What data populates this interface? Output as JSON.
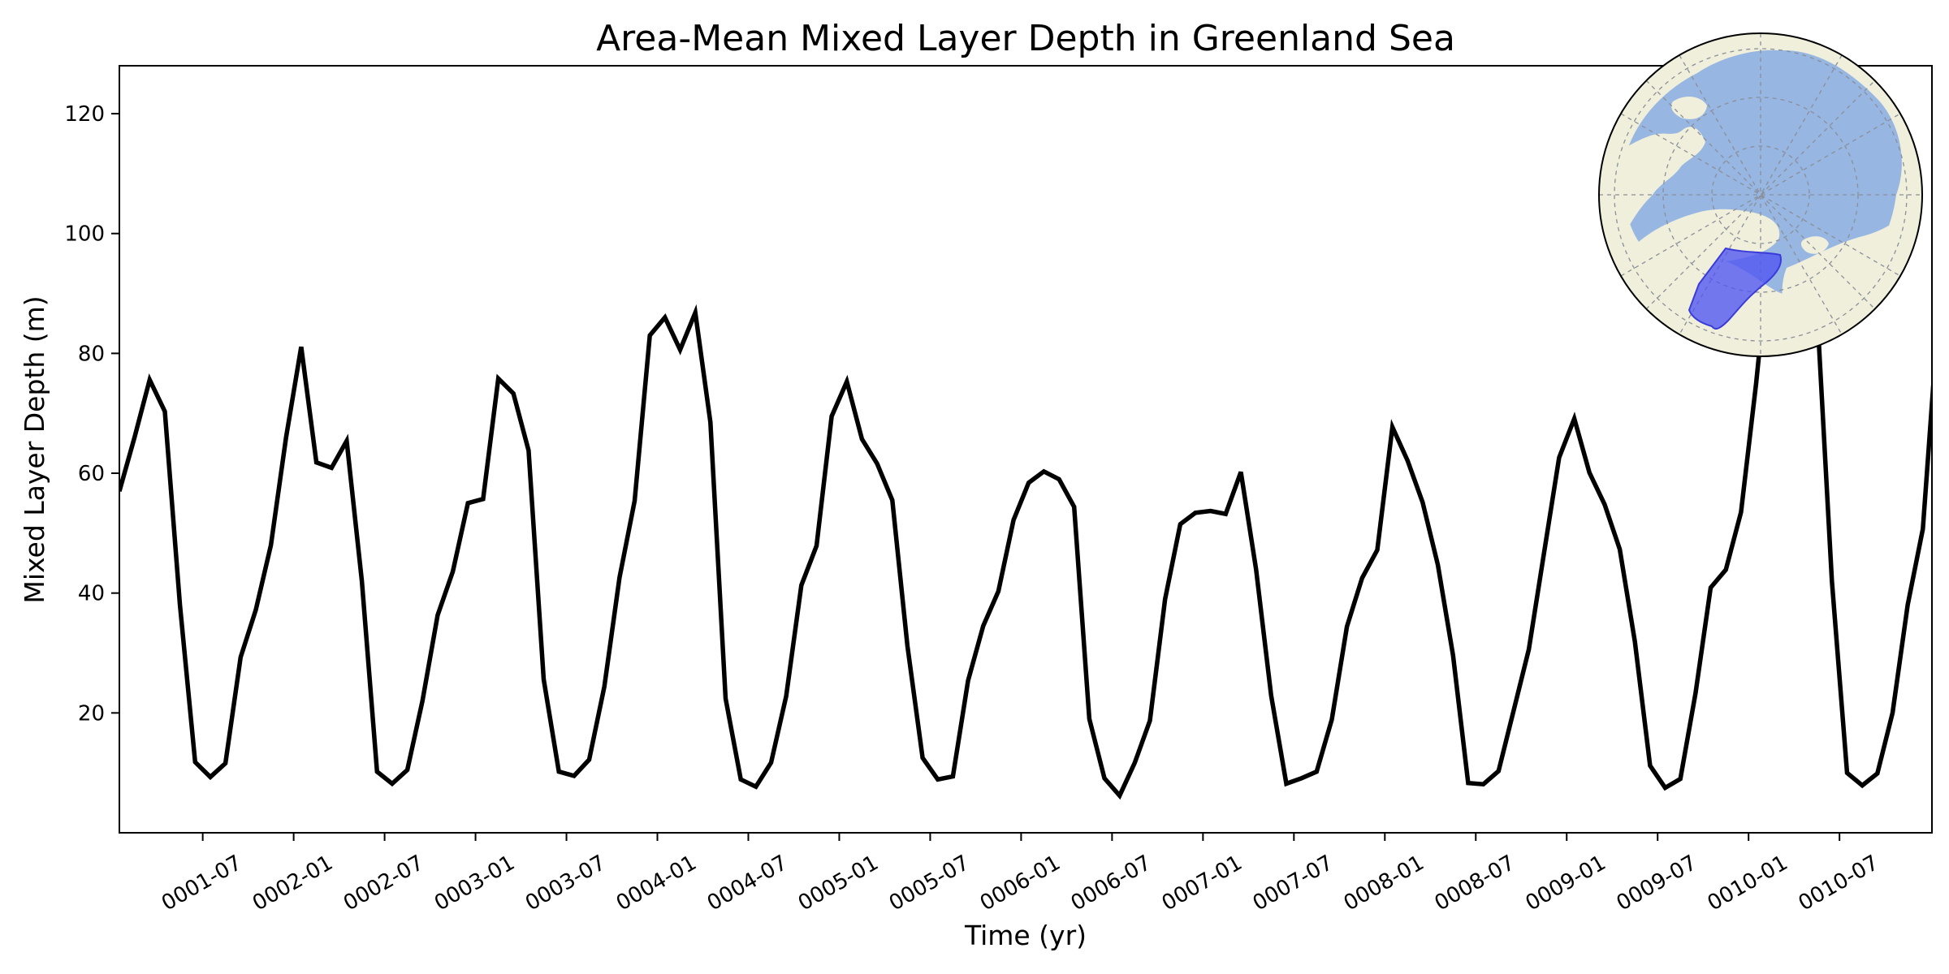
{
  "chart_data": {
    "type": "line",
    "title": "Area-Mean Mixed Layer Depth in Greenland Sea",
    "xlabel": "Time (yr)",
    "ylabel": "Mixed Layer Depth (m)",
    "ylim": [
      0,
      128
    ],
    "xlim": [
      0,
      119.6
    ],
    "yticks": [
      20,
      40,
      60,
      80,
      100,
      120
    ],
    "xticks": [
      {
        "month_index": 5.5,
        "label": "0001-07"
      },
      {
        "month_index": 11.5,
        "label": "0002-01"
      },
      {
        "month_index": 17.5,
        "label": "0002-07"
      },
      {
        "month_index": 23.5,
        "label": "0003-01"
      },
      {
        "month_index": 29.5,
        "label": "0003-07"
      },
      {
        "month_index": 35.5,
        "label": "0004-01"
      },
      {
        "month_index": 41.5,
        "label": "0004-07"
      },
      {
        "month_index": 47.5,
        "label": "0005-01"
      },
      {
        "month_index": 53.5,
        "label": "0005-07"
      },
      {
        "month_index": 59.5,
        "label": "0006-01"
      },
      {
        "month_index": 65.5,
        "label": "0006-07"
      },
      {
        "month_index": 71.5,
        "label": "0007-01"
      },
      {
        "month_index": 77.5,
        "label": "0007-07"
      },
      {
        "month_index": 83.5,
        "label": "0008-01"
      },
      {
        "month_index": 89.5,
        "label": "0008-07"
      },
      {
        "month_index": 95.5,
        "label": "0009-01"
      },
      {
        "month_index": 101.5,
        "label": "0009-07"
      },
      {
        "month_index": 107.5,
        "label": "0010-01"
      },
      {
        "month_index": 113.5,
        "label": "0010-07"
      }
    ],
    "series": [
      {
        "name": "Area-mean MLD",
        "color": "#000000",
        "x_unit": "months since 0001-01",
        "values": [
          57,
          66,
          75.6,
          70.3,
          38,
          11.8,
          9.3,
          11.6,
          29.3,
          37.2,
          48,
          66,
          81.1,
          61.8,
          60.9,
          65.4,
          42,
          10.2,
          8.2,
          10.5,
          22,
          36.3,
          43.6,
          55,
          55.7,
          75.8,
          73.3,
          63.8,
          25.6,
          10.2,
          9.5,
          12.2,
          24.4,
          42.6,
          55.4,
          83,
          86,
          80.6,
          86.8,
          68.5,
          22.4,
          8.9,
          7.7,
          11.7,
          22.8,
          41.3,
          47.9,
          69.5,
          75.3,
          65.7,
          61.6,
          55.5,
          31.2,
          12.5,
          8.9,
          9.4,
          25.4,
          34.5,
          40.3,
          52.2,
          58.4,
          60.3,
          59,
          54.4,
          19,
          9.1,
          6.2,
          11.7,
          18.7,
          39,
          51.5,
          53.4,
          53.7,
          53.2,
          60.2,
          44,
          22.9,
          8.2,
          9.1,
          10.2,
          18.9,
          34.4,
          42.5,
          47.2,
          67.7,
          62.1,
          55.1,
          44.7,
          29.6,
          8.3,
          8.1,
          10.3,
          20.4,
          30.6,
          46.6,
          62.6,
          69.1,
          60.1,
          54.8,
          47.3,
          31.9,
          11.2,
          7.5,
          9,
          23.3,
          40.9,
          43.9,
          53.5,
          75,
          100,
          118,
          120,
          88,
          42,
          10,
          7.9,
          9.9,
          20,
          38,
          50.7,
          85.6
        ]
      }
    ],
    "inset_map": {
      "description_label": "",
      "ocean_color": "#97b6e2",
      "land_color": "#efefdb",
      "region_fill": "#4f55f2",
      "region_edge": "#3b3bd8"
    }
  }
}
